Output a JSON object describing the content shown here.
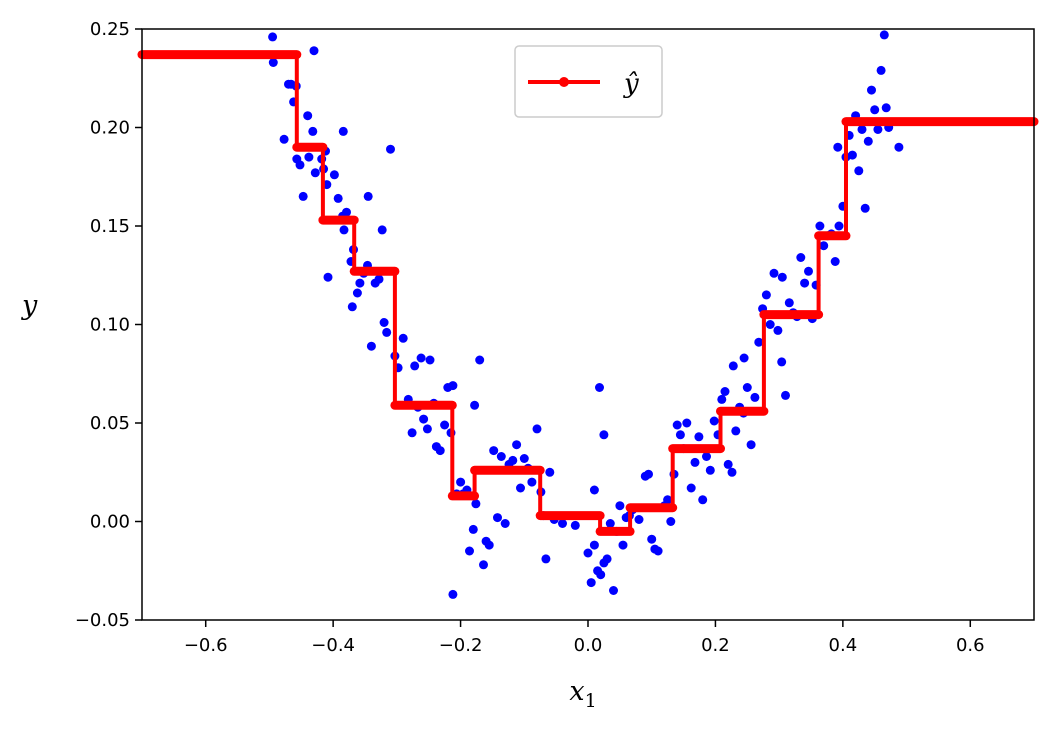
{
  "chart_data": {
    "type": "scatter",
    "title": "",
    "xlabel": "x",
    "xlabel_sub": "1",
    "ylabel": "y",
    "xlim": [
      -0.7,
      0.7
    ],
    "ylim": [
      -0.05,
      0.25
    ],
    "xticks": [
      -0.6,
      -0.4,
      -0.2,
      0.0,
      0.2,
      0.4,
      0.6
    ],
    "xtick_labels": [
      "−0.6",
      "−0.4",
      "−0.2",
      "0.0",
      "0.2",
      "0.4",
      "0.6"
    ],
    "yticks": [
      -0.05,
      0.0,
      0.05,
      0.1,
      0.15,
      0.2,
      0.25
    ],
    "ytick_labels": [
      "−0.05",
      "0.00",
      "0.05",
      "0.10",
      "0.15",
      "0.20",
      "0.25"
    ],
    "grid": false,
    "legend": {
      "position": "top-center",
      "entries": [
        {
          "label": "ŷ",
          "color": "#ff0000"
        }
      ]
    },
    "colors": {
      "scatter": "#0000ff",
      "prediction": "#ff0000"
    },
    "series": [
      {
        "kind": "scatter",
        "points": [
          [
            -0.495,
            0.246
          ],
          [
            -0.494,
            0.233
          ],
          [
            -0.47,
            0.222
          ],
          [
            -0.466,
            0.222
          ],
          [
            -0.462,
            0.213
          ],
          [
            -0.458,
            0.221
          ],
          [
            -0.477,
            0.194
          ],
          [
            -0.457,
            0.184
          ],
          [
            -0.452,
            0.181
          ],
          [
            -0.447,
            0.165
          ],
          [
            -0.44,
            0.206
          ],
          [
            -0.438,
            0.185
          ],
          [
            -0.432,
            0.198
          ],
          [
            -0.43,
            0.239
          ],
          [
            -0.428,
            0.177
          ],
          [
            -0.418,
            0.184
          ],
          [
            -0.415,
            0.179
          ],
          [
            -0.41,
            0.171
          ],
          [
            -0.412,
            0.188
          ],
          [
            -0.398,
            0.176
          ],
          [
            -0.392,
            0.164
          ],
          [
            -0.385,
            0.155
          ],
          [
            -0.383,
            0.148
          ],
          [
            -0.379,
            0.157
          ],
          [
            -0.372,
            0.132
          ],
          [
            -0.37,
            0.109
          ],
          [
            -0.368,
            0.138
          ],
          [
            -0.362,
            0.116
          ],
          [
            -0.358,
            0.121
          ],
          [
            -0.352,
            0.126
          ],
          [
            -0.346,
            0.13
          ],
          [
            -0.34,
            0.089
          ],
          [
            -0.334,
            0.121
          ],
          [
            -0.328,
            0.123
          ],
          [
            -0.323,
            0.148
          ],
          [
            -0.32,
            0.101
          ],
          [
            -0.316,
            0.096
          ],
          [
            -0.31,
            0.189
          ],
          [
            -0.408,
            0.124
          ],
          [
            -0.384,
            0.198
          ],
          [
            -0.345,
            0.165
          ],
          [
            -0.303,
            0.084
          ],
          [
            -0.298,
            0.078
          ],
          [
            -0.29,
            0.093
          ],
          [
            -0.282,
            0.062
          ],
          [
            -0.276,
            0.045
          ],
          [
            -0.272,
            0.079
          ],
          [
            -0.267,
            0.058
          ],
          [
            -0.262,
            0.083
          ],
          [
            -0.258,
            0.052
          ],
          [
            -0.252,
            0.047
          ],
          [
            -0.248,
            0.082
          ],
          [
            -0.242,
            0.06
          ],
          [
            -0.238,
            0.038
          ],
          [
            -0.232,
            0.036
          ],
          [
            -0.225,
            0.049
          ],
          [
            -0.22,
            0.068
          ],
          [
            -0.215,
            0.045
          ],
          [
            -0.212,
            0.069
          ],
          [
            -0.206,
            0.014
          ],
          [
            -0.2,
            0.02
          ],
          [
            -0.196,
            0.014
          ],
          [
            -0.19,
            0.016
          ],
          [
            -0.186,
            -0.015
          ],
          [
            -0.18,
            -0.004
          ],
          [
            -0.176,
            0.009
          ],
          [
            -0.17,
            0.082
          ],
          [
            -0.164,
            -0.022
          ],
          [
            -0.16,
            -0.01
          ],
          [
            -0.155,
            -0.012
          ],
          [
            -0.148,
            0.036
          ],
          [
            -0.142,
            0.002
          ],
          [
            -0.136,
            0.033
          ],
          [
            -0.13,
            -0.001
          ],
          [
            -0.124,
            0.029
          ],
          [
            -0.118,
            0.031
          ],
          [
            -0.112,
            0.039
          ],
          [
            -0.106,
            0.017
          ],
          [
            -0.1,
            0.032
          ],
          [
            -0.094,
            0.027
          ],
          [
            -0.088,
            0.02
          ],
          [
            -0.08,
            0.047
          ],
          [
            -0.074,
            0.015
          ],
          [
            -0.07,
            0.003
          ],
          [
            -0.066,
            -0.019
          ],
          [
            -0.06,
            0.025
          ],
          [
            -0.212,
            -0.037
          ],
          [
            -0.178,
            0.059
          ],
          [
            -0.053,
            0.001
          ],
          [
            -0.04,
            -0.001
          ],
          [
            -0.02,
            -0.002
          ],
          [
            0.0,
            -0.016
          ],
          [
            0.005,
            -0.031
          ],
          [
            0.01,
            -0.012
          ],
          [
            0.015,
            -0.025
          ],
          [
            0.02,
            -0.027
          ],
          [
            0.025,
            -0.021
          ],
          [
            0.03,
            -0.019
          ],
          [
            0.035,
            -0.001
          ],
          [
            0.04,
            -0.035
          ],
          [
            0.045,
            -0.005
          ],
          [
            0.05,
            0.008
          ],
          [
            0.055,
            -0.012
          ],
          [
            0.06,
            0.002
          ],
          [
            0.018,
            0.068
          ],
          [
            0.025,
            0.044
          ],
          [
            0.01,
            0.016
          ],
          [
            0.065,
            0.003
          ],
          [
            0.07,
            0.006
          ],
          [
            0.08,
            0.001
          ],
          [
            0.09,
            0.023
          ],
          [
            0.095,
            0.024
          ],
          [
            0.1,
            -0.009
          ],
          [
            0.105,
            -0.014
          ],
          [
            0.11,
            -0.015
          ],
          [
            0.12,
            0.008
          ],
          [
            0.125,
            0.011
          ],
          [
            0.13,
            0.0
          ],
          [
            0.135,
            0.024
          ],
          [
            0.14,
            0.049
          ],
          [
            0.145,
            0.044
          ],
          [
            0.15,
            0.037
          ],
          [
            0.155,
            0.05
          ],
          [
            0.162,
            0.017
          ],
          [
            0.168,
            0.03
          ],
          [
            0.174,
            0.043
          ],
          [
            0.18,
            0.011
          ],
          [
            0.186,
            0.033
          ],
          [
            0.192,
            0.026
          ],
          [
            0.198,
            0.051
          ],
          [
            0.204,
            0.044
          ],
          [
            0.21,
            0.062
          ],
          [
            0.215,
            0.066
          ],
          [
            0.22,
            0.029
          ],
          [
            0.226,
            0.025
          ],
          [
            0.232,
            0.046
          ],
          [
            0.238,
            0.058
          ],
          [
            0.244,
            0.055
          ],
          [
            0.25,
            0.068
          ],
          [
            0.256,
            0.039
          ],
          [
            0.262,
            0.063
          ],
          [
            0.268,
            0.091
          ],
          [
            0.274,
            0.108
          ],
          [
            0.28,
            0.115
          ],
          [
            0.286,
            0.1
          ],
          [
            0.292,
            0.126
          ],
          [
            0.298,
            0.097
          ],
          [
            0.304,
            0.081
          ],
          [
            0.31,
            0.064
          ],
          [
            0.316,
            0.111
          ],
          [
            0.322,
            0.106
          ],
          [
            0.328,
            0.104
          ],
          [
            0.334,
            0.134
          ],
          [
            0.34,
            0.121
          ],
          [
            0.346,
            0.127
          ],
          [
            0.352,
            0.103
          ],
          [
            0.358,
            0.12
          ],
          [
            0.364,
            0.15
          ],
          [
            0.37,
            0.14
          ],
          [
            0.376,
            0.145
          ],
          [
            0.382,
            0.146
          ],
          [
            0.388,
            0.132
          ],
          [
            0.392,
            0.19
          ],
          [
            0.394,
            0.15
          ],
          [
            0.4,
            0.16
          ],
          [
            0.405,
            0.185
          ],
          [
            0.41,
            0.196
          ],
          [
            0.415,
            0.186
          ],
          [
            0.42,
            0.206
          ],
          [
            0.425,
            0.178
          ],
          [
            0.43,
            0.199
          ],
          [
            0.435,
            0.159
          ],
          [
            0.44,
            0.193
          ],
          [
            0.445,
            0.219
          ],
          [
            0.45,
            0.209
          ],
          [
            0.455,
            0.199
          ],
          [
            0.46,
            0.229
          ],
          [
            0.465,
            0.247
          ],
          [
            0.468,
            0.21
          ],
          [
            0.472,
            0.2
          ],
          [
            0.488,
            0.19
          ],
          [
            0.228,
            0.079
          ],
          [
            0.245,
            0.083
          ],
          [
            0.305,
            0.124
          ]
        ]
      },
      {
        "kind": "step",
        "name": "ŷ",
        "segments": [
          [
            -0.7,
            -0.457,
            0.237
          ],
          [
            -0.457,
            -0.416,
            0.19
          ],
          [
            -0.416,
            -0.367,
            0.153
          ],
          [
            -0.367,
            -0.303,
            0.127
          ],
          [
            -0.303,
            -0.213,
            0.059
          ],
          [
            -0.213,
            -0.178,
            0.013
          ],
          [
            -0.178,
            -0.075,
            0.026
          ],
          [
            -0.075,
            0.019,
            0.003
          ],
          [
            0.019,
            0.066,
            -0.005
          ],
          [
            0.066,
            0.133,
            0.007
          ],
          [
            0.133,
            0.208,
            0.037
          ],
          [
            0.208,
            0.276,
            0.056
          ],
          [
            0.276,
            0.362,
            0.105
          ],
          [
            0.362,
            0.405,
            0.145
          ],
          [
            0.405,
            0.7,
            0.203
          ]
        ]
      }
    ]
  }
}
